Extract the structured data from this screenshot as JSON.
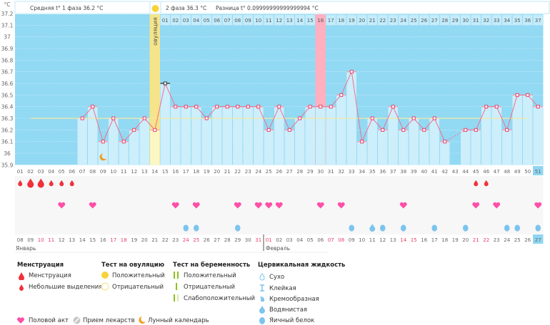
{
  "header": {
    "phase1_avg": "Средняя t° 1 фаза 36.2 °C",
    "phase2_avg": "2 фаза 36.3 °C",
    "difference": "Разница t° 0.09999999999999994 °C",
    "ovulation_label": "овуляция"
  },
  "chart_data": {
    "type": "line",
    "ylabel": "°C",
    "ylim": [
      35.9,
      37.2
    ],
    "y_ticks": [
      "37.2",
      "37.1",
      "37",
      "36.9",
      "36.8",
      "36.7",
      "36.6",
      "36.5",
      "36.4",
      "36.3",
      "36.2",
      "36.1",
      "36",
      "35.9"
    ],
    "grid": true,
    "cycle_days": [
      "01",
      "02",
      "03",
      "04",
      "05",
      "06",
      "07",
      "08",
      "09",
      "10",
      "11",
      "12",
      "13",
      "14",
      "15",
      "16",
      "17",
      "18",
      "19",
      "20",
      "21",
      "22",
      "23",
      "24",
      "25",
      "26",
      "27",
      "28",
      "29",
      "30",
      "31",
      "32",
      "33",
      "34",
      "35",
      "36",
      "37",
      "38",
      "39",
      "40",
      "41",
      "42",
      "43",
      "44",
      "45",
      "46",
      "47",
      "48",
      "49",
      "50",
      "51"
    ],
    "temperatures": [
      null,
      null,
      null,
      null,
      null,
      null,
      36.3,
      36.4,
      36.1,
      36.3,
      36.1,
      36.2,
      36.3,
      36.2,
      36.6,
      36.4,
      36.4,
      36.4,
      36.3,
      36.4,
      36.4,
      36.4,
      36.4,
      36.4,
      36.2,
      36.4,
      36.2,
      36.3,
      36.4,
      36.4,
      36.4,
      36.5,
      36.7,
      36.1,
      36.3,
      36.2,
      36.4,
      36.2,
      36.3,
      36.2,
      36.3,
      36.1,
      null,
      36.2,
      36.2,
      36.4,
      36.4,
      36.2,
      36.5,
      36.5,
      36.4
    ],
    "cover_line": 36.3,
    "ovulation_day": 14,
    "highlight_day": 30,
    "current_day": 51,
    "phase2_days": [
      "01",
      "02",
      "03",
      "04",
      "05",
      "06",
      "07",
      "08",
      "09",
      "10",
      "11",
      "12",
      "13",
      "14",
      "15",
      "16",
      "17",
      "18",
      "19",
      "20",
      "21",
      "22",
      "23",
      "24",
      "25",
      "26",
      "27",
      "28",
      "29",
      "30",
      "31",
      "32",
      "33",
      "34",
      "35",
      "36",
      "37"
    ],
    "dates": [
      "08",
      "09",
      "10",
      "11",
      "12",
      "13",
      "14",
      "15",
      "16",
      "17",
      "18",
      "19",
      "20",
      "21",
      "22",
      "23",
      "24",
      "25",
      "26",
      "27",
      "28",
      "29",
      "30",
      "31",
      "01",
      "02",
      "03",
      "04",
      "05",
      "06",
      "07",
      "08",
      "09",
      "10",
      "11",
      "12",
      "13",
      "14",
      "15",
      "16",
      "17",
      "18",
      "19",
      "20",
      "21",
      "22",
      "23",
      "24",
      "25",
      "26",
      "27"
    ],
    "weekend_days": [
      3,
      4,
      10,
      11,
      17,
      18,
      24,
      25,
      31,
      32,
      38,
      39,
      45,
      46
    ],
    "months": [
      "Январь",
      "Февраль"
    ],
    "menstruation": {
      "1": "light",
      "2": "heavy",
      "3": "heavy",
      "4": "light",
      "5": "light",
      "6": "light",
      "45": "light",
      "46": "light"
    },
    "intercourse_days": [
      5,
      8,
      16,
      18,
      22,
      24,
      25,
      26,
      30,
      32,
      38,
      45,
      47,
      51
    ],
    "cervical": {
      "17": "egg-white",
      "18": "egg-white",
      "22": "egg-white",
      "33": "egg-white",
      "35": "watery",
      "36": "egg-white",
      "38": "egg-white",
      "41": "egg-white",
      "44": "egg-white",
      "48": "egg-white",
      "49": "egg-white",
      "51": "egg-white"
    },
    "moon_day": 9,
    "colors": {
      "background": "#92d9f3",
      "bar": "#cdeefb",
      "line": "#f0708f",
      "cover": "#f3e9a0",
      "ovulation": "#f5e48a",
      "highlight": "#ffb0c0",
      "blood": "#f0313a",
      "heart": "#ff4fa8",
      "cervical": "#7cc4ee",
      "moon": "#f39a1a"
    }
  },
  "legend": {
    "menstruation": {
      "title": "Менструация",
      "items": [
        "Менструация",
        "Небольшие выделения"
      ]
    },
    "ovulation_test": {
      "title": "Тест на овуляцию",
      "items": [
        "Положительный",
        "Отрицательный"
      ]
    },
    "pregnancy_test": {
      "title": "Тест на беременность",
      "items": [
        "Положительный",
        "Отрицательный",
        "Слабоположительный"
      ]
    },
    "cervical": {
      "title": "Цервикальная жидкость",
      "items": [
        "Сухо",
        "Клейкая",
        "Кремообразная",
        "Водянистая",
        "Яичный белок"
      ]
    },
    "other": [
      "Половой акт",
      "Прием лекарств",
      "Лунный календарь"
    ]
  }
}
